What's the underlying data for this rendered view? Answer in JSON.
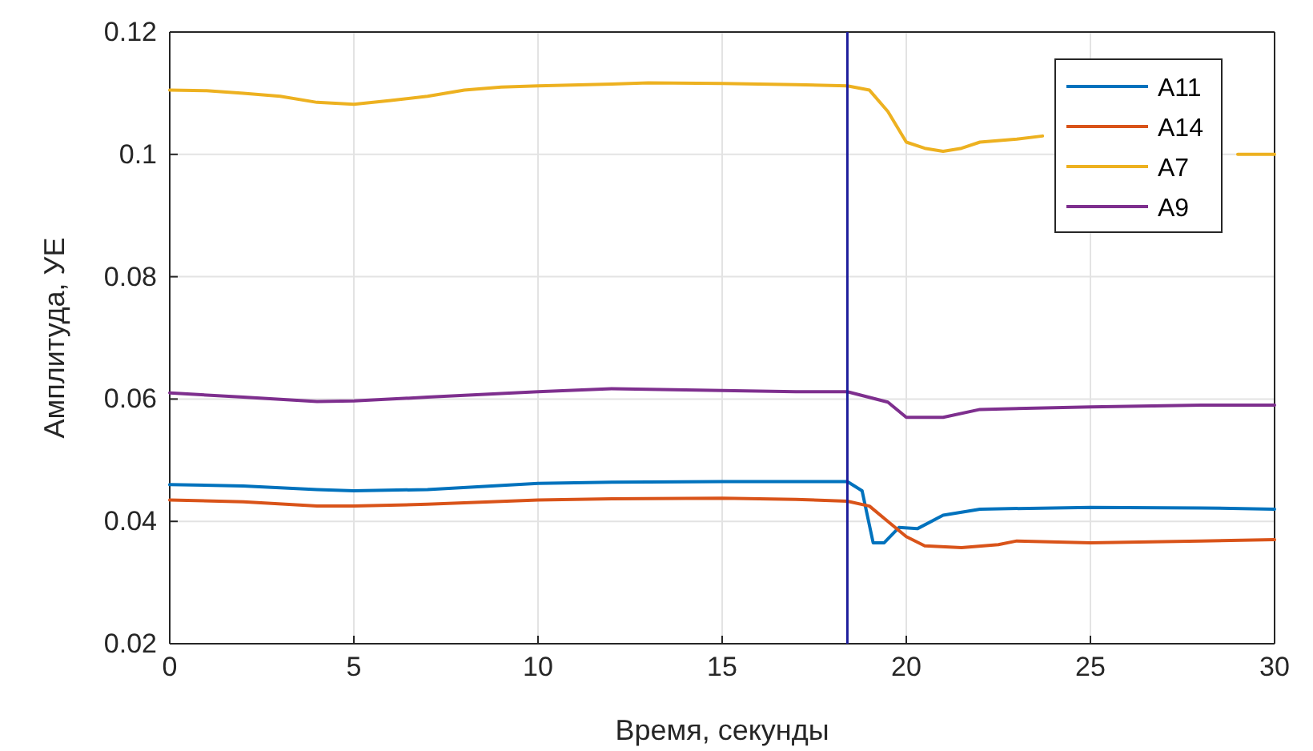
{
  "chart_data": {
    "type": "line",
    "xlabel": "Время, секунды",
    "ylabel": "Амплитуда, УЕ",
    "xlim": [
      0,
      30
    ],
    "xticks": [
      0,
      5,
      10,
      15,
      20,
      25,
      30
    ],
    "ylim": [
      0.02,
      0.12
    ],
    "yticks": [
      0.02,
      0.04,
      0.06,
      0.08,
      {
        "value": 0.1,
        "label": "0.1"
      },
      0.12
    ],
    "grid": true,
    "legend": "top right",
    "ref_lines": [
      {
        "axis": "x",
        "value": 18.4,
        "color": "#1c1c9c"
      }
    ],
    "series": [
      {
        "name": "A11",
        "color": "#0072bd",
        "x": [
          0,
          2,
          4,
          5,
          7,
          10,
          12,
          15,
          17,
          18.4,
          18.8,
          19.1,
          19.4,
          19.8,
          20.3,
          21,
          22,
          25,
          28,
          30
        ],
        "values": [
          0.046,
          0.0458,
          0.0452,
          0.045,
          0.0452,
          0.0462,
          0.0464,
          0.0465,
          0.0465,
          0.0465,
          0.045,
          0.0365,
          0.0365,
          0.039,
          0.0388,
          0.041,
          0.042,
          0.0423,
          0.0422,
          0.042
        ]
      },
      {
        "name": "A14",
        "color": "#d95319",
        "x": [
          0,
          2,
          4,
          5,
          7,
          10,
          12,
          15,
          17,
          18.4,
          19,
          19.5,
          20,
          20.5,
          21.5,
          22.5,
          23,
          25,
          28,
          30
        ],
        "values": [
          0.0435,
          0.0432,
          0.0425,
          0.0425,
          0.0428,
          0.0435,
          0.0437,
          0.0438,
          0.0436,
          0.0433,
          0.0425,
          0.04,
          0.0375,
          0.036,
          0.0357,
          0.0362,
          0.0368,
          0.0365,
          0.0368,
          0.037
        ]
      },
      {
        "name": "A7",
        "color": "#edb120",
        "x": [
          0,
          1,
          2,
          3,
          4,
          5,
          6,
          7,
          8,
          9,
          10,
          12,
          13,
          15,
          17,
          18.4,
          19,
          19.5,
          20,
          20.5,
          21,
          21.5,
          22,
          23,
          23.7,
          28.7,
          29,
          30
        ],
        "values": [
          0.1105,
          0.1104,
          0.11,
          0.1095,
          0.1085,
          0.1082,
          0.1088,
          0.1095,
          0.1105,
          0.111,
          0.1112,
          0.1115,
          0.1117,
          0.1116,
          0.1114,
          0.1112,
          0.1105,
          0.107,
          0.102,
          0.101,
          0.1005,
          0.101,
          0.102,
          0.1025,
          0.103,
          null,
          0.1,
          0.1
        ]
      },
      {
        "name": "A9",
        "color": "#7e2f8e",
        "x": [
          0,
          2,
          4,
          5,
          7,
          10,
          12,
          15,
          17,
          18.4,
          19.5,
          20,
          21,
          22,
          25,
          28,
          30
        ],
        "values": [
          0.061,
          0.0603,
          0.0596,
          0.0597,
          0.0603,
          0.0612,
          0.0617,
          0.0614,
          0.0612,
          0.0612,
          0.0595,
          0.057,
          0.057,
          0.0583,
          0.0587,
          0.059,
          0.059
        ]
      }
    ]
  }
}
